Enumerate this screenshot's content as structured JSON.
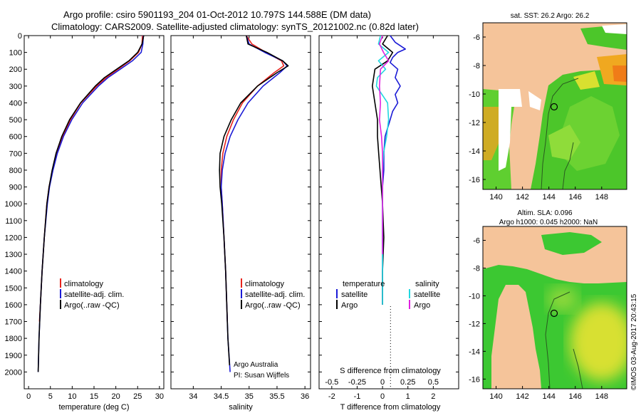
{
  "header": {
    "title_line1": "Argo profile: csiro 5901193_204 01-Oct-2012 10.797S 144.588E (DM data)",
    "title_line2": "Climatology: CARS2009. Satellite-adjusted climatology: synTS_20121002.nc (0.82d later)"
  },
  "colors": {
    "climatology": "#e8231c",
    "satellite": "#1a1ad6",
    "argo": "#000000",
    "cyan": "#22d8e0",
    "magenta": "#e020e0",
    "land": "#f5c49a",
    "sea_green": "#38c82a",
    "sea_yellow": "#d8e030",
    "sea_orange": "#f4a020"
  },
  "chart_data": [
    {
      "type": "line",
      "name": "temperature",
      "xlabel": "temperature (deg C)",
      "ylabel": "",
      "xlim": [
        -1,
        31
      ],
      "ylim": [
        0,
        2100
      ],
      "xticks": [
        0,
        5,
        10,
        15,
        20,
        25,
        30
      ],
      "yticks": [
        0,
        100,
        200,
        300,
        400,
        500,
        600,
        700,
        800,
        900,
        1000,
        1100,
        1200,
        1300,
        1400,
        1500,
        1600,
        1700,
        1800,
        1900,
        2000
      ],
      "legend": [
        "climatology",
        "satellite-adj. clim.",
        "Argo(..raw -QC)"
      ],
      "series": [
        {
          "name": "climatology",
          "color_key": "climatology",
          "y": [
            0,
            50,
            100,
            150,
            200,
            250,
            300,
            400,
            500,
            600,
            700,
            800,
            900,
            1000,
            1200,
            1400,
            1600,
            1700
          ],
          "values": [
            26.1,
            26.0,
            25.2,
            23.2,
            20.5,
            17.8,
            15.6,
            12.0,
            9.6,
            7.8,
            6.5,
            5.5,
            4.7,
            4.2,
            3.6,
            3.1,
            2.7,
            2.5
          ]
        },
        {
          "name": "satellite-adj. clim.",
          "color_key": "satellite",
          "y": [
            0,
            50,
            100,
            150,
            200,
            250,
            300,
            400,
            500,
            600,
            700,
            800,
            900,
            1000,
            1200,
            1400,
            1600,
            1800,
            2000
          ],
          "values": [
            26.3,
            26.2,
            25.8,
            23.8,
            21.0,
            18.2,
            16.0,
            12.4,
            9.9,
            8.0,
            6.6,
            5.6,
            4.8,
            4.3,
            3.6,
            3.1,
            2.7,
            2.4,
            2.2
          ]
        },
        {
          "name": "Argo(..raw -QC)",
          "color_key": "argo",
          "y": [
            0,
            50,
            100,
            150,
            200,
            250,
            300,
            400,
            500,
            600,
            700,
            800,
            900,
            1000,
            1200,
            1400,
            1600,
            1800,
            2000
          ],
          "values": [
            26.4,
            26.0,
            25.0,
            23.0,
            20.2,
            17.4,
            15.3,
            11.9,
            9.4,
            7.6,
            6.3,
            5.4,
            4.7,
            4.2,
            3.6,
            3.1,
            2.7,
            2.4,
            2.2
          ]
        }
      ]
    },
    {
      "type": "line",
      "name": "salinity",
      "xlabel": "salinity",
      "ylabel": "",
      "xlim": [
        33.6,
        36.1
      ],
      "ylim": [
        0,
        2100
      ],
      "xticks": [
        34,
        34.5,
        35,
        35.5,
        36
      ],
      "legend": [
        "climatology",
        "satellite-adj. clim.",
        "Argo(..raw -QC)"
      ],
      "annotation": [
        "Argo Australia",
        "PI: Susan Wijffels"
      ],
      "series": [
        {
          "name": "climatology",
          "color_key": "climatology",
          "y": [
            0,
            50,
            100,
            150,
            180,
            220,
            300,
            400,
            500,
            600,
            700,
            800,
            900,
            1000,
            1200,
            1400,
            1600,
            1700
          ],
          "values": [
            34.95,
            35.05,
            35.3,
            35.58,
            35.62,
            35.45,
            35.15,
            34.88,
            34.72,
            34.6,
            34.53,
            34.5,
            34.5,
            34.52,
            34.55,
            34.58,
            34.6,
            34.61
          ]
        },
        {
          "name": "satellite-adj. clim.",
          "color_key": "satellite",
          "y": [
            0,
            50,
            100,
            150,
            180,
            220,
            300,
            400,
            500,
            600,
            700,
            800,
            900,
            1000,
            1200,
            1400,
            1600,
            1800,
            2000
          ],
          "values": [
            34.95,
            35.0,
            35.28,
            35.6,
            35.68,
            35.55,
            35.25,
            34.98,
            34.8,
            34.66,
            34.57,
            34.52,
            34.5,
            34.52,
            34.55,
            34.58,
            34.6,
            34.62,
            34.66
          ]
        },
        {
          "name": "Argo(..raw -QC)",
          "color_key": "argo",
          "y": [
            0,
            50,
            100,
            150,
            180,
            220,
            300,
            400,
            500,
            600,
            700,
            800,
            900,
            1000,
            1200,
            1400,
            1600,
            1800,
            1960
          ],
          "values": [
            34.95,
            34.98,
            35.32,
            35.6,
            35.7,
            35.5,
            35.15,
            34.85,
            34.68,
            34.55,
            34.48,
            34.47,
            34.48,
            34.51,
            34.55,
            34.58,
            34.6,
            34.62,
            34.65
          ]
        }
      ]
    },
    {
      "type": "line",
      "name": "difference",
      "xlabel": "T difference from climatology",
      "xlabel_top": "S difference from climatology",
      "xlim": [
        -2.5,
        3.0
      ],
      "ylim": [
        0,
        2100
      ],
      "xticks_T": [
        -2,
        -1,
        0,
        1,
        2
      ],
      "xticks_S": [
        -0.5,
        -0.25,
        0,
        0.25,
        0.5
      ],
      "s_scale_note": "S ticks share the T axis with 0.5 psu = 2 deg C",
      "legend_temp_title": "temperature",
      "legend_sal_title": "salinity",
      "legend_temp": [
        "satellite",
        "Argo"
      ],
      "legend_sal": [
        "satellite",
        "Argo"
      ],
      "series": [
        {
          "name": "T satellite",
          "color_key": "satellite",
          "y": [
            0,
            40,
            80,
            100,
            130,
            160,
            200,
            250,
            300,
            350,
            400,
            450,
            500,
            550,
            600,
            700,
            800,
            900,
            1000,
            1200,
            1400,
            1600
          ],
          "values": [
            0.3,
            0.5,
            0.9,
            0.6,
            0.4,
            0.3,
            0.6,
            0.5,
            0.7,
            0.5,
            0.6,
            0.4,
            0.3,
            0.2,
            0.1,
            0.05,
            0.05,
            0.0,
            0.0,
            0.0,
            0.0,
            0.0
          ]
        },
        {
          "name": "T Argo",
          "color_key": "argo",
          "y": [
            0,
            50,
            100,
            150,
            200,
            300,
            400,
            500,
            600,
            700,
            800,
            900,
            1000,
            1200,
            1400,
            1600
          ],
          "values": [
            0.2,
            0.0,
            0.4,
            0.2,
            -0.3,
            -0.4,
            -0.3,
            -0.2,
            -0.2,
            -0.15,
            -0.1,
            -0.05,
            0.0,
            0.05,
            0.0,
            0.0
          ]
        },
        {
          "name": "S satellite",
          "color_key": "cyan",
          "y": [
            0,
            50,
            100,
            150,
            200,
            250,
            300,
            400,
            500,
            600,
            700,
            800,
            900,
            1000,
            1200,
            1400,
            1600
          ],
          "values": [
            -0.02,
            -0.04,
            0.06,
            -0.04,
            0.03,
            -0.05,
            -0.06,
            0.05,
            0.06,
            0.04,
            0.01,
            0.0,
            0.0,
            0.0,
            0.0,
            0.0,
            0.0
          ]
        },
        {
          "name": "S Argo",
          "color_key": "magenta",
          "y": [
            0,
            50,
            100,
            150,
            200,
            300,
            400,
            500,
            600,
            700,
            800,
            1000,
            1200,
            1300
          ],
          "values": [
            0.0,
            -0.03,
            0.01,
            0.06,
            -0.02,
            -0.03,
            -0.02,
            -0.03,
            -0.01,
            0.0,
            0.0,
            0.0,
            0.0,
            0.0
          ]
        }
      ]
    }
  ],
  "maps": {
    "sst": {
      "title": "sat. SST: 26.2 Argo: 26.2",
      "xticks": [
        140,
        142,
        144,
        146,
        148
      ],
      "yticks": [
        -6,
        -8,
        -10,
        -12,
        -14,
        -16
      ]
    },
    "sla": {
      "title_line1": "Altim. SLA: 0.096",
      "title_line2": "Argo h1000: 0.045 h2000: NaN",
      "xticks": [
        140,
        142,
        144,
        146,
        148
      ],
      "yticks": [
        -6,
        -8,
        -10,
        -12,
        -14,
        -16
      ]
    }
  },
  "footer": {
    "stamp": "©IMOS 03-Aug-2017 20:43:15"
  }
}
